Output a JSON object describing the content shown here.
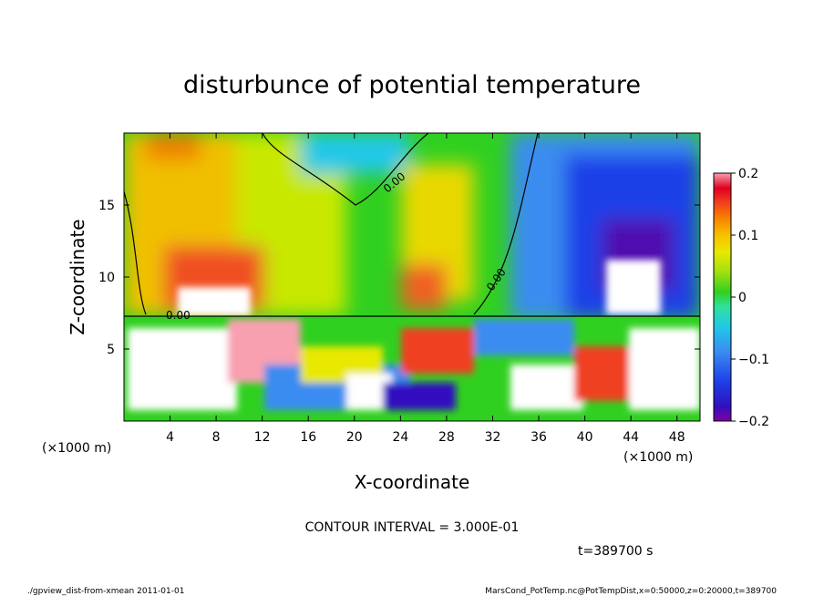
{
  "chart_data": {
    "type": "heatmap",
    "title": "disturbunce of potential temperature",
    "xlabel": "X-coordinate",
    "ylabel": "Z-coordinate",
    "x_unit": "(×1000 m)",
    "y_unit": "(×1000 m)",
    "x_ticks": [
      4,
      8,
      12,
      16,
      20,
      24,
      28,
      32,
      36,
      40,
      44,
      48
    ],
    "y_ticks": [
      5,
      10,
      15
    ],
    "xlim": [
      0,
      50
    ],
    "ylim": [
      0,
      20
    ],
    "colorbar": {
      "min": -0.2,
      "max": 0.2,
      "tick_labels": [
        "0.2",
        "0.1",
        "0",
        "−0.1",
        "−0.2"
      ],
      "tick_values": [
        0.2,
        0.1,
        0,
        -0.1,
        -0.2
      ]
    },
    "contour_label": "0.00",
    "contour_interval_text": "CONTOUR INTERVAL = 3.000E-01",
    "time_text": "t=389700 s",
    "footer_left": "./gpview_dist-from-xmean   2011-01-01",
    "footer_right": "MarsCond_PotTemp.nc@PotTempDist,x=0:50000,z=0:20000,t=389700",
    "colors": {
      "colormap": [
        "#8000a0",
        "#3010c0",
        "#1e40e8",
        "#3a8cf0",
        "#20c8e8",
        "#30e0a0",
        "#30d020",
        "#a0e010",
        "#e8e800",
        "#f8c000",
        "#f88000",
        "#f04020",
        "#e00020",
        "#f8a0b0",
        "#ffffff"
      ]
    }
  }
}
